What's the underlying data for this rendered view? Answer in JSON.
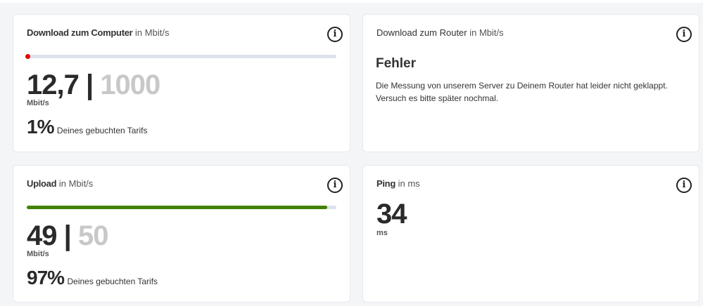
{
  "download_computer": {
    "title": "Download zum Computer",
    "unit_label": "in Mbit/s",
    "value": "12,7",
    "separator": "|",
    "max": "1000",
    "unit": "Mbit/s",
    "percent": "1%",
    "percent_text": "Deines gebuchten Tarifs",
    "progress_percent": 1,
    "bar_color": "#e60000"
  },
  "download_router": {
    "title": "Download zum Router",
    "unit_label": "in Mbit/s",
    "error_heading": "Fehler",
    "error_text": "Die Messung von unserem Server zu Deinem Router hat leider nicht geklappt. Versuch es bitte später nochmal."
  },
  "upload": {
    "title": "Upload",
    "unit_label": "in Mbit/s",
    "value": "49",
    "separator": "|",
    "max": "50",
    "unit": "Mbit/s",
    "percent": "97%",
    "percent_text": "Deines gebuchten Tarifs",
    "progress_percent": 97,
    "bar_color": "#428100"
  },
  "ping": {
    "title": "Ping",
    "unit_label": "in ms",
    "value": "34",
    "unit": "ms"
  },
  "info_icon": "i"
}
